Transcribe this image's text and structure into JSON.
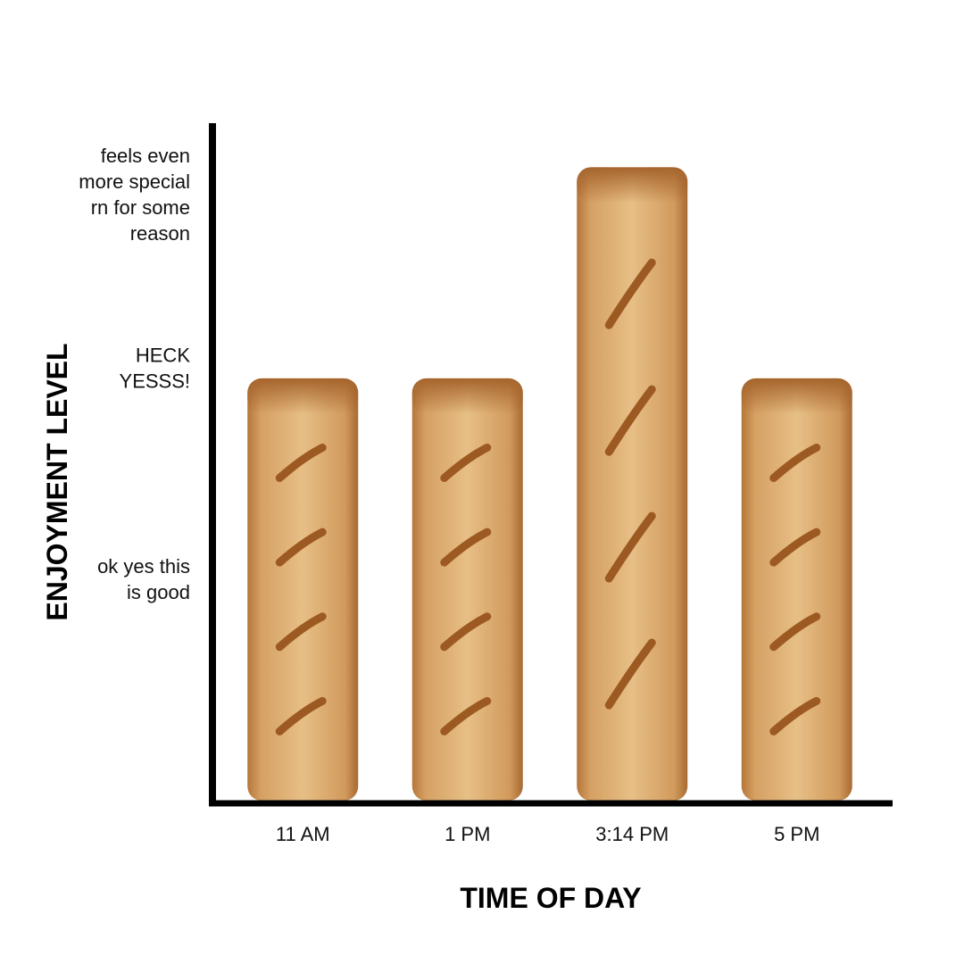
{
  "chart_data": {
    "type": "bar",
    "title": "",
    "xlabel": "TIME OF DAY",
    "ylabel": "ENJOYMENT LEVEL",
    "categories": [
      "11 AM",
      "1 PM",
      "3:14 PM",
      "5 PM"
    ],
    "values": [
      2,
      2,
      3,
      2
    ],
    "ylim": [
      0,
      3.2
    ],
    "yticks": [
      {
        "value": 1,
        "label": "ok yes this is good",
        "lines": [
          "ok yes this",
          "is good"
        ]
      },
      {
        "value": 2,
        "label": "HECK YESSS!",
        "lines": [
          "HECK",
          "YESSS!"
        ]
      },
      {
        "value": 3,
        "label": "feels even more special rn for some reason",
        "lines": [
          "feels even",
          "more special",
          "rn for some",
          "reason"
        ]
      }
    ],
    "bar_style": "bread-loaf",
    "bar_color": "#d9a35c",
    "grid": false
  }
}
